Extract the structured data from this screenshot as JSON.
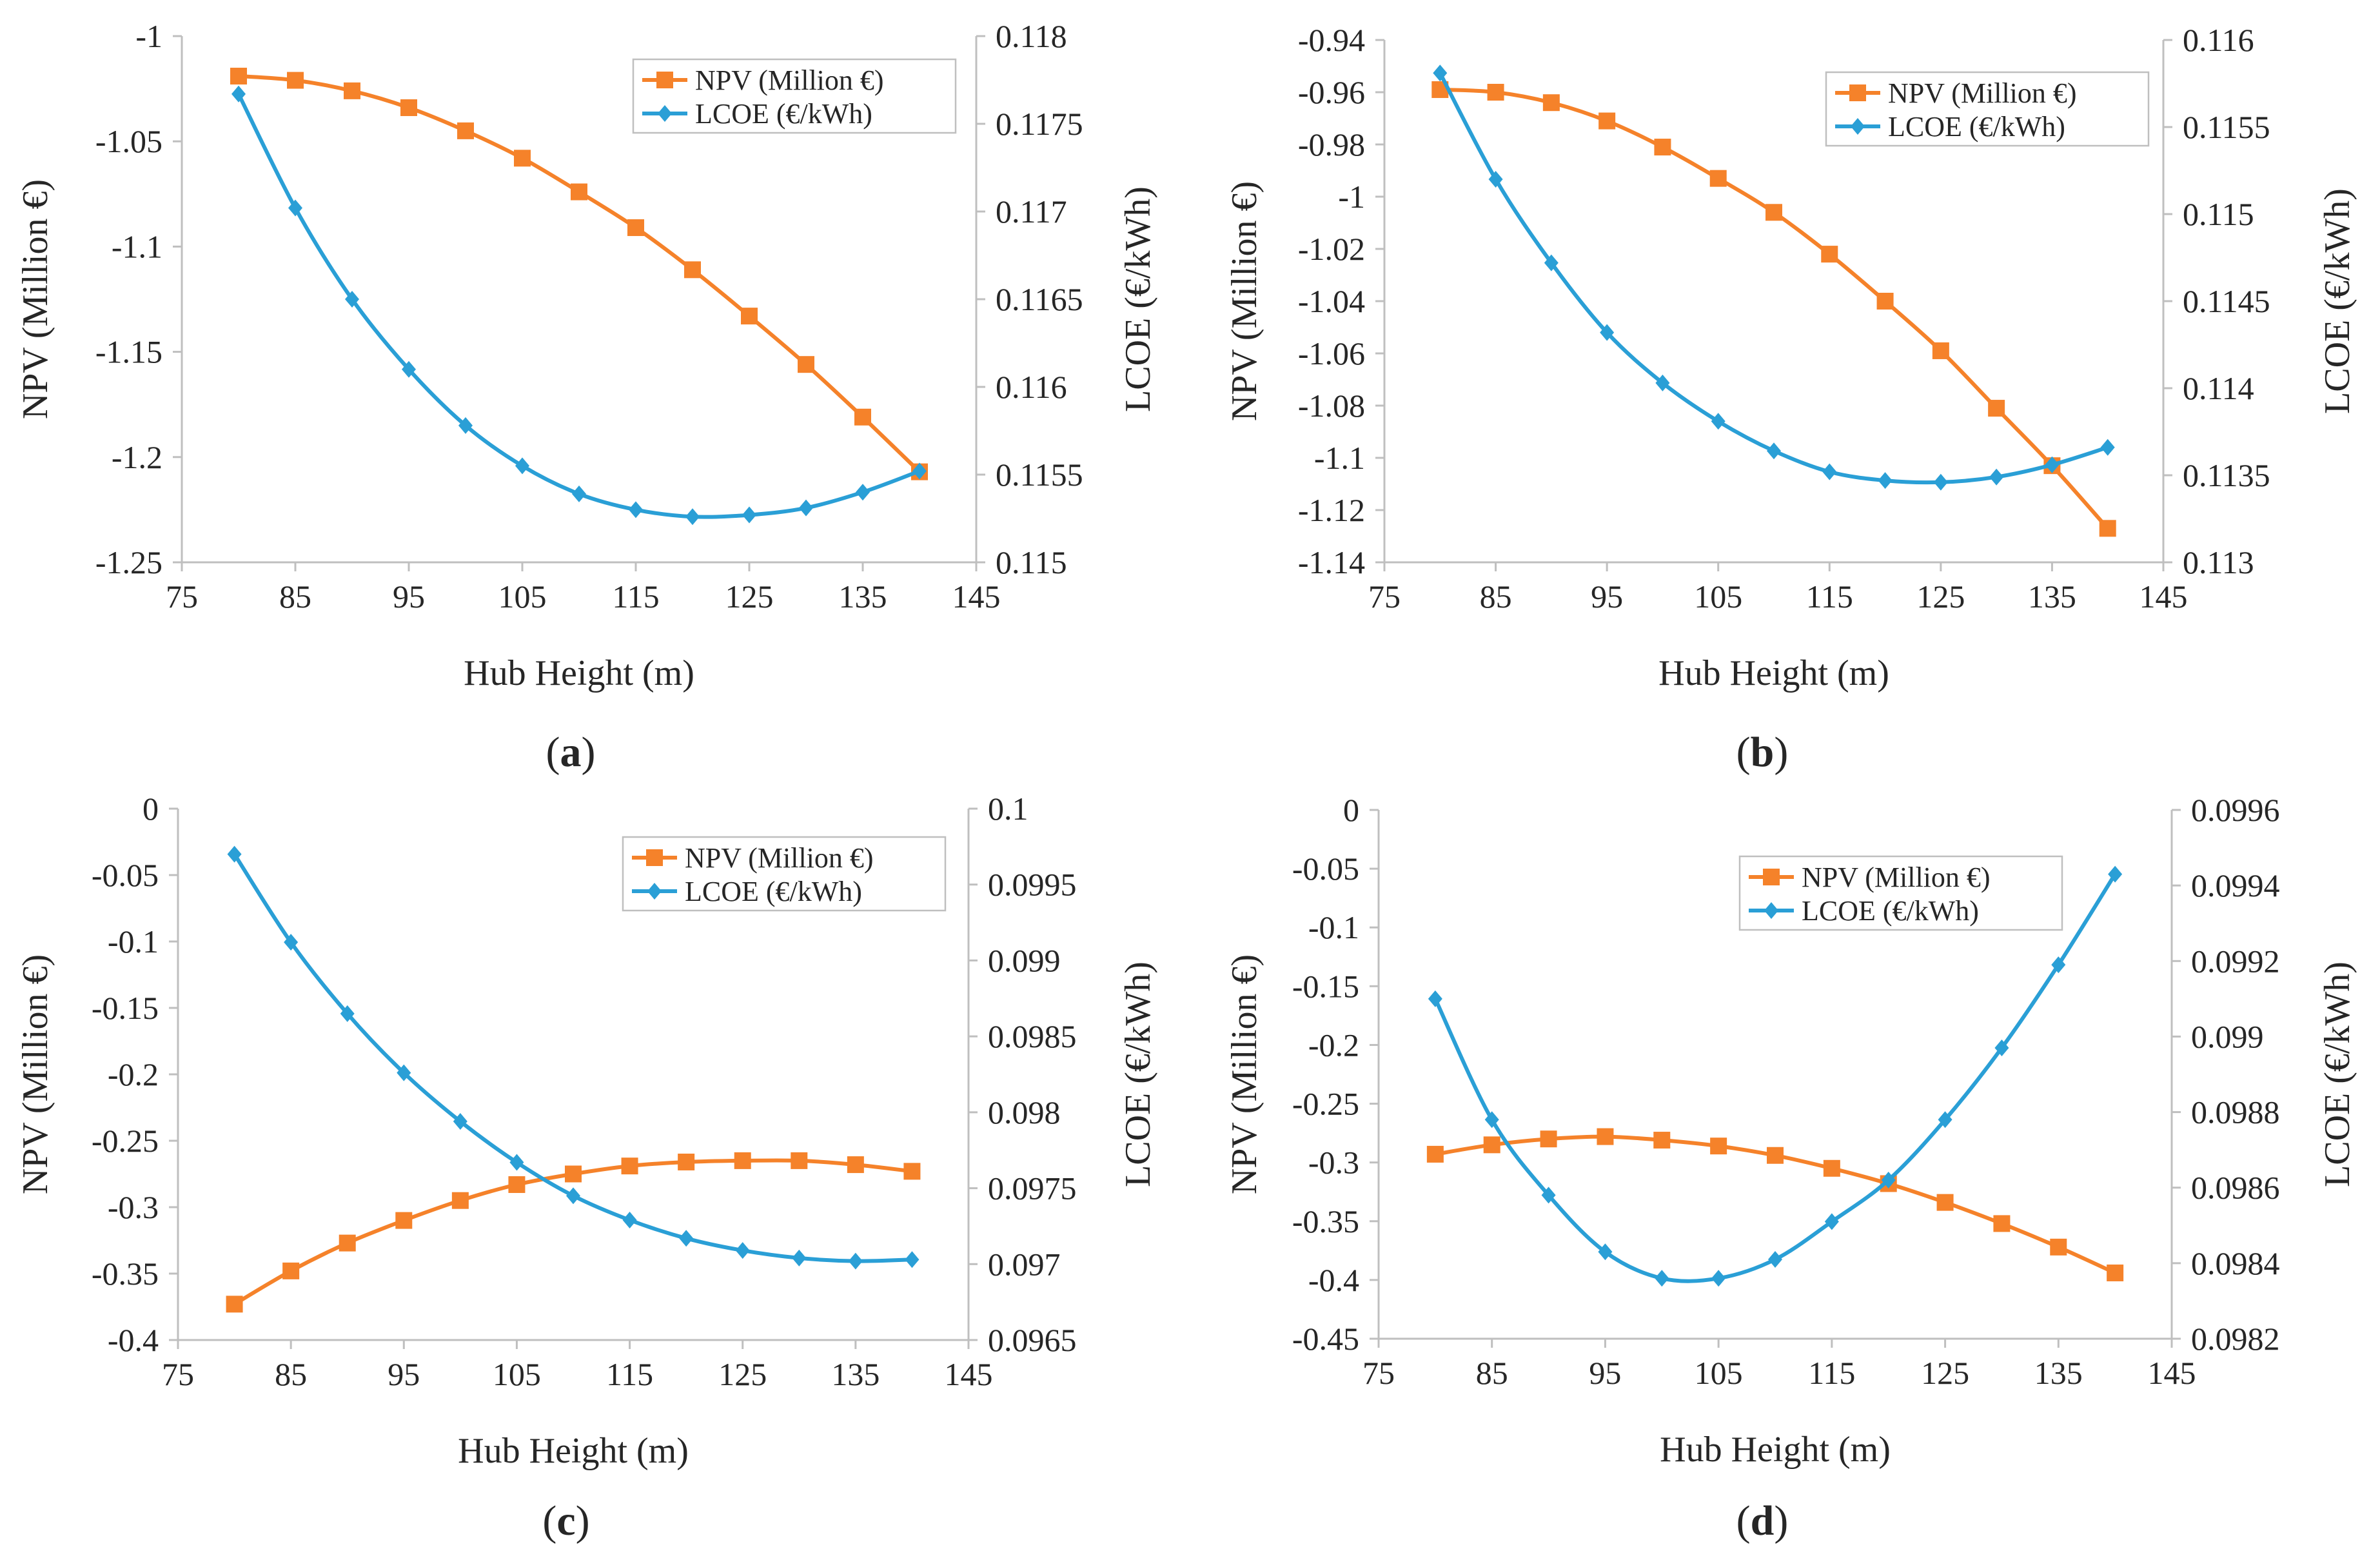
{
  "colors": {
    "npv": "#F5822A",
    "lcoe": "#2A9FD6",
    "axis": "#BFBFBF",
    "text": "#262626"
  },
  "chart_data": [
    {
      "type": "line",
      "caption": {
        "open": "(",
        "letter": "a",
        "close": ")"
      },
      "xlabel": "Hub Height (m)",
      "ylabel": "NPV (Million €)",
      "ylabel2": "LCOE (€/kWh)",
      "xlim": [
        75,
        145
      ],
      "xticks": [
        "75",
        "85",
        "95",
        "105",
        "115",
        "125",
        "135",
        "145"
      ],
      "ylim": [
        -1.25,
        -1.0
      ],
      "yticks": [
        "-1",
        "-1.05",
        "-1.1",
        "-1.15",
        "-1.2",
        "-1.25"
      ],
      "y2lim": [
        0.115,
        0.118
      ],
      "y2ticks": [
        "0.118",
        "0.1175",
        "0.117",
        "0.1165",
        "0.116",
        "0.1155",
        "0.115"
      ],
      "x": [
        80,
        85,
        90,
        95,
        100,
        105,
        110,
        115,
        120,
        125,
        130,
        135,
        140
      ],
      "series": [
        {
          "name": "NPV (Million €)",
          "axis": "left",
          "marker": "square",
          "values": [
            -1.019,
            -1.021,
            -1.026,
            -1.034,
            -1.045,
            -1.058,
            -1.074,
            -1.091,
            -1.111,
            -1.133,
            -1.156,
            -1.181,
            -1.207
          ]
        },
        {
          "name": "LCOE (€/kWh)",
          "axis": "right",
          "marker": "diamond",
          "values": [
            0.11767,
            0.11702,
            0.1165,
            0.1161,
            0.11578,
            0.11555,
            0.11539,
            0.1153,
            0.11526,
            0.11527,
            0.11531,
            0.1154,
            0.11552
          ]
        }
      ]
    },
    {
      "type": "line",
      "caption": {
        "open": "(",
        "letter": "b",
        "close": ")"
      },
      "xlabel": "Hub Height (m)",
      "ylabel": "NPV (Million €)",
      "ylabel2": "LCOE (€/kWh)",
      "xlim": [
        75,
        145
      ],
      "xticks": [
        "75",
        "85",
        "95",
        "105",
        "115",
        "125",
        "135",
        "145"
      ],
      "ylim": [
        -1.14,
        -0.94
      ],
      "yticks": [
        "-0.94",
        "-0.96",
        "-0.98",
        "-1",
        "-1.02",
        "-1.04",
        "-1.06",
        "-1.08",
        "-1.1",
        "-1.12",
        "-1.14"
      ],
      "y2lim": [
        0.113,
        0.116
      ],
      "y2ticks": [
        "0.116",
        "0.1155",
        "0.115",
        "0.1145",
        "0.114",
        "0.1135",
        "0.113"
      ],
      "x": [
        80,
        85,
        90,
        95,
        100,
        105,
        110,
        115,
        120,
        125,
        130,
        135,
        140
      ],
      "series": [
        {
          "name": "NPV (Million €)",
          "axis": "left",
          "marker": "square",
          "values": [
            -0.959,
            -0.96,
            -0.964,
            -0.971,
            -0.981,
            -0.993,
            -1.006,
            -1.022,
            -1.04,
            -1.059,
            -1.081,
            -1.103,
            -1.127
          ]
        },
        {
          "name": "LCOE (€/kWh)",
          "axis": "right",
          "marker": "diamond",
          "values": [
            0.11581,
            0.1152,
            0.11472,
            0.11432,
            0.11403,
            0.11381,
            0.11364,
            0.11352,
            0.11347,
            0.11346,
            0.11349,
            0.11356,
            0.11366
          ]
        }
      ]
    },
    {
      "type": "line",
      "caption": {
        "open": "(",
        "letter": "c",
        "close": ")"
      },
      "xlabel": "Hub Height (m)",
      "ylabel": "NPV (Million €)",
      "ylabel2": "LCOE (€/kWh)",
      "xlim": [
        75,
        145
      ],
      "xticks": [
        "75",
        "85",
        "95",
        "105",
        "115",
        "125",
        "135",
        "145"
      ],
      "ylim": [
        -0.4,
        0.0
      ],
      "yticks": [
        "0",
        "-0.05",
        "-0.1",
        "-0.15",
        "-0.2",
        "-0.25",
        "-0.3",
        "-0.35",
        "-0.4"
      ],
      "y2lim": [
        0.0965,
        0.1
      ],
      "y2ticks": [
        "0.1",
        "0.0995",
        "0.099",
        "0.0985",
        "0.098",
        "0.0975",
        "0.097",
        "0.0965"
      ],
      "x": [
        80,
        85,
        90,
        95,
        100,
        105,
        110,
        115,
        120,
        125,
        130,
        135,
        140
      ],
      "series": [
        {
          "name": "NPV (Million €)",
          "axis": "left",
          "marker": "square",
          "values": [
            -0.373,
            -0.348,
            -0.327,
            -0.31,
            -0.295,
            -0.283,
            -0.275,
            -0.269,
            -0.266,
            -0.265,
            -0.265,
            -0.268,
            -0.273
          ]
        },
        {
          "name": "LCOE (€/kWh)",
          "axis": "right",
          "marker": "diamond",
          "values": [
            0.0997,
            0.09912,
            0.09865,
            0.09826,
            0.09794,
            0.09767,
            0.09745,
            0.09729,
            0.09717,
            0.09709,
            0.09704,
            0.09702,
            0.09703
          ]
        }
      ]
    },
    {
      "type": "line",
      "caption": {
        "open": "(",
        "letter": "d",
        "close": ")"
      },
      "xlabel": "Hub Height (m)",
      "ylabel": "NPV (Million €)",
      "ylabel2": "LCOE (€/kWh)",
      "xlim": [
        75,
        145
      ],
      "xticks": [
        "75",
        "85",
        "95",
        "105",
        "115",
        "125",
        "135",
        "145"
      ],
      "ylim": [
        -0.45,
        0.0
      ],
      "yticks": [
        "0",
        "-0.05",
        "-0.1",
        "-0.15",
        "-0.2",
        "-0.25",
        "-0.3",
        "-0.35",
        "-0.4",
        "-0.45"
      ],
      "y2lim": [
        0.0982,
        0.0996
      ],
      "y2ticks": [
        "0.0996",
        "0.0994",
        "0.0992",
        "0.099",
        "0.0988",
        "0.0986",
        "0.0984",
        "0.0982"
      ],
      "x": [
        80,
        85,
        90,
        95,
        100,
        105,
        110,
        115,
        120,
        125,
        130,
        135,
        140
      ],
      "series": [
        {
          "name": "NPV (Million €)",
          "axis": "left",
          "marker": "square",
          "values": [
            -0.293,
            -0.285,
            -0.28,
            -0.278,
            -0.281,
            -0.286,
            -0.294,
            -0.305,
            -0.318,
            -0.334,
            -0.352,
            -0.372,
            -0.394
          ]
        },
        {
          "name": "LCOE (€/kWh)",
          "axis": "right",
          "marker": "diamond",
          "values": [
            0.0991,
            0.09878,
            0.09858,
            0.09843,
            0.09836,
            0.09836,
            0.09841,
            0.09851,
            0.09862,
            0.09878,
            0.09897,
            0.09919,
            0.09943
          ]
        }
      ]
    }
  ]
}
